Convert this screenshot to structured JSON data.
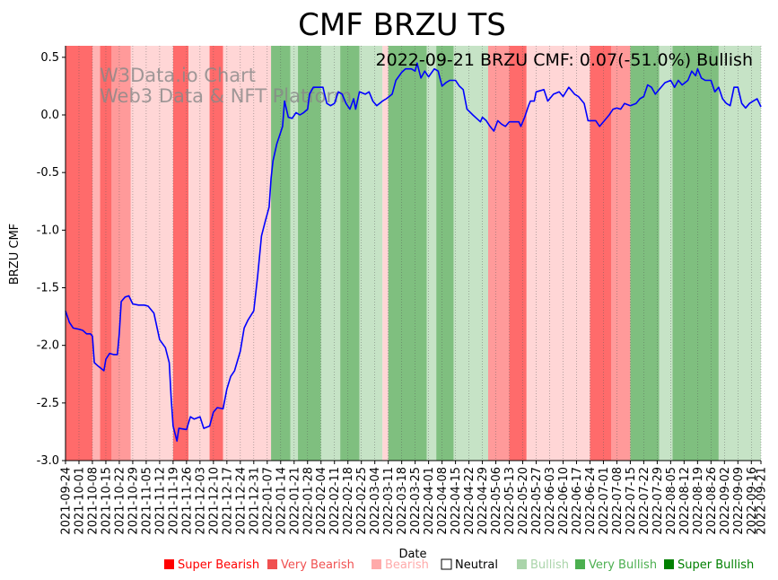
{
  "chart_data": {
    "type": "line",
    "title": "CMF BRZU TS",
    "annotation": "2022-09-21 BRZU CMF: 0.07(-51.0%) Bullish",
    "watermark": [
      "W3Data.io Chart",
      "Web3 Data & NFT Platform"
    ],
    "xlabel": "Date",
    "ylabel": "BRZU CMF",
    "ylim": [
      -3.0,
      0.6
    ],
    "yticks": [
      "-3.0",
      "-2.5",
      "-2.0",
      "-1.5",
      "-1.0",
      "-0.5",
      "0.0",
      "0.5"
    ],
    "ytick_values": [
      -3.0,
      -2.5,
      -2.0,
      -1.5,
      -1.0,
      -0.5,
      0.0,
      0.5
    ],
    "x_start": "2021-09-24",
    "x_end": "2022-09-21",
    "xticks": [
      "2021-09-24",
      "2021-10-01",
      "2021-10-08",
      "2021-10-15",
      "2021-10-22",
      "2021-10-29",
      "2021-11-05",
      "2021-11-12",
      "2021-11-19",
      "2021-11-26",
      "2021-12-03",
      "2021-12-10",
      "2021-12-17",
      "2021-12-24",
      "2021-12-31",
      "2022-01-07",
      "2022-01-14",
      "2022-01-21",
      "2022-01-28",
      "2022-02-04",
      "2022-02-11",
      "2022-02-18",
      "2022-02-25",
      "2022-03-04",
      "2022-03-11",
      "2022-03-18",
      "2022-03-25",
      "2022-04-01",
      "2022-04-08",
      "2022-04-15",
      "2022-04-22",
      "2022-04-29",
      "2022-05-06",
      "2022-05-13",
      "2022-05-20",
      "2022-05-27",
      "2022-06-03",
      "2022-06-10",
      "2022-06-17",
      "2022-06-24",
      "2022-07-01",
      "2022-07-08",
      "2022-07-15",
      "2022-07-22",
      "2022-07-29",
      "2022-08-05",
      "2022-08-12",
      "2022-08-19",
      "2022-08-26",
      "2022-09-02",
      "2022-09-09",
      "2022-09-16",
      "2022-09-21"
    ],
    "series": [
      {
        "color": "#0000ff",
        "points": [
          [
            "2021-09-24",
            -1.7
          ],
          [
            "2021-09-26",
            -1.8
          ],
          [
            "2021-09-28",
            -1.85
          ],
          [
            "2021-10-01",
            -1.86
          ],
          [
            "2021-10-03",
            -1.87
          ],
          [
            "2021-10-05",
            -1.9
          ],
          [
            "2021-10-07",
            -1.9
          ],
          [
            "2021-10-08",
            -1.92
          ],
          [
            "2021-10-09",
            -2.15
          ],
          [
            "2021-10-11",
            -2.18
          ],
          [
            "2021-10-14",
            -2.22
          ],
          [
            "2021-10-15",
            -2.12
          ],
          [
            "2021-10-17",
            -2.07
          ],
          [
            "2021-10-19",
            -2.08
          ],
          [
            "2021-10-21",
            -2.08
          ],
          [
            "2021-10-22",
            -1.9
          ],
          [
            "2021-10-23",
            -1.62
          ],
          [
            "2021-10-25",
            -1.58
          ],
          [
            "2021-10-27",
            -1.57
          ],
          [
            "2021-10-29",
            -1.64
          ],
          [
            "2021-11-01",
            -1.65
          ],
          [
            "2021-11-04",
            -1.65
          ],
          [
            "2021-11-06",
            -1.66
          ],
          [
            "2021-11-09",
            -1.72
          ],
          [
            "2021-11-12",
            -1.95
          ],
          [
            "2021-11-15",
            -2.02
          ],
          [
            "2021-11-17",
            -2.15
          ],
          [
            "2021-11-18",
            -2.45
          ],
          [
            "2021-11-19",
            -2.7
          ],
          [
            "2021-11-21",
            -2.83
          ],
          [
            "2021-11-22",
            -2.72
          ],
          [
            "2021-11-26",
            -2.73
          ],
          [
            "2021-11-28",
            -2.62
          ],
          [
            "2021-11-30",
            -2.64
          ],
          [
            "2021-12-03",
            -2.62
          ],
          [
            "2021-12-05",
            -2.72
          ],
          [
            "2021-12-08",
            -2.7
          ],
          [
            "2021-12-10",
            -2.58
          ],
          [
            "2021-12-12",
            -2.54
          ],
          [
            "2021-12-15",
            -2.55
          ],
          [
            "2021-12-17",
            -2.38
          ],
          [
            "2021-12-19",
            -2.27
          ],
          [
            "2021-12-21",
            -2.22
          ],
          [
            "2021-12-24",
            -2.05
          ],
          [
            "2021-12-26",
            -1.85
          ],
          [
            "2021-12-28",
            -1.78
          ],
          [
            "2021-12-31",
            -1.7
          ],
          [
            "2022-01-02",
            -1.4
          ],
          [
            "2022-01-04",
            -1.05
          ],
          [
            "2022-01-06",
            -0.92
          ],
          [
            "2022-01-08",
            -0.8
          ],
          [
            "2022-01-09",
            -0.55
          ],
          [
            "2022-01-10",
            -0.4
          ],
          [
            "2022-01-12",
            -0.25
          ],
          [
            "2022-01-14",
            -0.15
          ],
          [
            "2022-01-15",
            -0.1
          ],
          [
            "2022-01-16",
            0.12
          ],
          [
            "2022-01-18",
            -0.02
          ],
          [
            "2022-01-20",
            -0.03
          ],
          [
            "2022-01-22",
            0.02
          ],
          [
            "2022-01-24",
            0.0
          ],
          [
            "2022-01-26",
            0.02
          ],
          [
            "2022-01-28",
            0.05
          ],
          [
            "2022-01-29",
            0.18
          ],
          [
            "2022-01-31",
            0.24
          ],
          [
            "2022-02-02",
            0.24
          ],
          [
            "2022-02-05",
            0.24
          ],
          [
            "2022-02-07",
            0.1
          ],
          [
            "2022-02-09",
            0.08
          ],
          [
            "2022-02-11",
            0.1
          ],
          [
            "2022-02-13",
            0.2
          ],
          [
            "2022-02-15",
            0.18
          ],
          [
            "2022-02-17",
            0.1
          ],
          [
            "2022-02-19",
            0.05
          ],
          [
            "2022-02-21",
            0.14
          ],
          [
            "2022-02-22",
            0.05
          ],
          [
            "2022-02-24",
            0.2
          ],
          [
            "2022-02-27",
            0.18
          ],
          [
            "2022-03-01",
            0.2
          ],
          [
            "2022-03-03",
            0.12
          ],
          [
            "2022-03-05",
            0.08
          ],
          [
            "2022-03-08",
            0.12
          ],
          [
            "2022-03-10",
            0.14
          ],
          [
            "2022-03-13",
            0.18
          ],
          [
            "2022-03-15",
            0.3
          ],
          [
            "2022-03-18",
            0.37
          ],
          [
            "2022-03-20",
            0.4
          ],
          [
            "2022-03-23",
            0.4
          ],
          [
            "2022-03-25",
            0.38
          ],
          [
            "2022-03-26",
            0.45
          ],
          [
            "2022-03-28",
            0.32
          ],
          [
            "2022-03-30",
            0.38
          ],
          [
            "2022-04-01",
            0.33
          ],
          [
            "2022-04-04",
            0.4
          ],
          [
            "2022-04-06",
            0.38
          ],
          [
            "2022-04-08",
            0.25
          ],
          [
            "2022-04-10",
            0.28
          ],
          [
            "2022-04-12",
            0.3
          ],
          [
            "2022-04-15",
            0.3
          ],
          [
            "2022-04-17",
            0.25
          ],
          [
            "2022-04-19",
            0.22
          ],
          [
            "2022-04-21",
            0.05
          ],
          [
            "2022-04-24",
            0.0
          ],
          [
            "2022-04-26",
            -0.03
          ],
          [
            "2022-04-28",
            -0.06
          ],
          [
            "2022-04-29",
            -0.02
          ],
          [
            "2022-05-01",
            -0.05
          ],
          [
            "2022-05-03",
            -0.1
          ],
          [
            "2022-05-05",
            -0.14
          ],
          [
            "2022-05-07",
            -0.05
          ],
          [
            "2022-05-09",
            -0.08
          ],
          [
            "2022-05-11",
            -0.1
          ],
          [
            "2022-05-13",
            -0.06
          ],
          [
            "2022-05-15",
            -0.06
          ],
          [
            "2022-05-18",
            -0.06
          ],
          [
            "2022-05-19",
            -0.1
          ],
          [
            "2022-05-21",
            -0.02
          ],
          [
            "2022-05-23",
            0.08
          ],
          [
            "2022-05-24",
            0.12
          ],
          [
            "2022-05-26",
            0.12
          ],
          [
            "2022-05-27",
            0.2
          ],
          [
            "2022-05-31",
            0.22
          ],
          [
            "2022-06-02",
            0.12
          ],
          [
            "2022-06-05",
            0.18
          ],
          [
            "2022-06-08",
            0.2
          ],
          [
            "2022-06-10",
            0.16
          ],
          [
            "2022-06-13",
            0.24
          ],
          [
            "2022-06-16",
            0.18
          ],
          [
            "2022-06-18",
            0.16
          ],
          [
            "2022-06-21",
            0.1
          ],
          [
            "2022-06-23",
            -0.05
          ],
          [
            "2022-06-27",
            -0.05
          ],
          [
            "2022-06-29",
            -0.1
          ],
          [
            "2022-07-02",
            -0.04
          ],
          [
            "2022-07-04",
            0.0
          ],
          [
            "2022-07-06",
            0.05
          ],
          [
            "2022-07-08",
            0.06
          ],
          [
            "2022-07-10",
            0.05
          ],
          [
            "2022-07-12",
            0.1
          ],
          [
            "2022-07-15",
            0.08
          ],
          [
            "2022-07-18",
            0.1
          ],
          [
            "2022-07-20",
            0.14
          ],
          [
            "2022-07-22",
            0.16
          ],
          [
            "2022-07-24",
            0.26
          ],
          [
            "2022-07-26",
            0.24
          ],
          [
            "2022-07-28",
            0.18
          ],
          [
            "2022-07-30",
            0.22
          ],
          [
            "2022-08-02",
            0.28
          ],
          [
            "2022-08-05",
            0.3
          ],
          [
            "2022-08-07",
            0.24
          ],
          [
            "2022-08-09",
            0.3
          ],
          [
            "2022-08-11",
            0.26
          ],
          [
            "2022-08-14",
            0.3
          ],
          [
            "2022-08-16",
            0.38
          ],
          [
            "2022-08-18",
            0.34
          ],
          [
            "2022-08-19",
            0.4
          ],
          [
            "2022-08-21",
            0.32
          ],
          [
            "2022-08-23",
            0.3
          ],
          [
            "2022-08-26",
            0.3
          ],
          [
            "2022-08-28",
            0.2
          ],
          [
            "2022-08-30",
            0.24
          ],
          [
            "2022-09-01",
            0.14
          ],
          [
            "2022-09-03",
            0.1
          ],
          [
            "2022-09-05",
            0.08
          ],
          [
            "2022-09-07",
            0.24
          ],
          [
            "2022-09-09",
            0.24
          ],
          [
            "2022-09-11",
            0.1
          ],
          [
            "2022-09-13",
            0.06
          ],
          [
            "2022-09-15",
            0.1
          ],
          [
            "2022-09-17",
            0.12
          ],
          [
            "2022-09-19",
            0.14
          ],
          [
            "2022-09-21",
            0.07
          ]
        ]
      }
    ],
    "regions": [
      [
        "2021-09-24",
        "2021-10-08",
        "Super Bearish"
      ],
      [
        "2021-10-08",
        "2021-10-12",
        "Bearish"
      ],
      [
        "2021-10-12",
        "2021-10-18",
        "Super Bearish"
      ],
      [
        "2021-10-18",
        "2021-10-28",
        "Very Bearish"
      ],
      [
        "2021-10-28",
        "2021-11-19",
        "Neutral"
      ],
      [
        "2021-11-19",
        "2021-11-27",
        "Super Bearish"
      ],
      [
        "2021-11-27",
        "2021-12-08",
        "Neutral"
      ],
      [
        "2021-12-08",
        "2021-12-15",
        "Super Bearish"
      ],
      [
        "2021-12-15",
        "2022-01-09",
        "Neutral"
      ],
      [
        "2022-01-09",
        "2022-01-19",
        "Very Bullish"
      ],
      [
        "2022-01-19",
        "2022-01-23",
        "Bullish"
      ],
      [
        "2022-01-23",
        "2022-02-04",
        "Very Bullish"
      ],
      [
        "2022-02-04",
        "2022-02-14",
        "Bullish"
      ],
      [
        "2022-02-14",
        "2022-02-24",
        "Very Bullish"
      ],
      [
        "2022-02-24",
        "2022-03-08",
        "Bullish"
      ],
      [
        "2022-03-08",
        "2022-03-11",
        "Neutral"
      ],
      [
        "2022-03-11",
        "2022-03-31",
        "Very Bullish"
      ],
      [
        "2022-03-31",
        "2022-04-05",
        "Bullish"
      ],
      [
        "2022-04-05",
        "2022-04-14",
        "Very Bullish"
      ],
      [
        "2022-04-14",
        "2022-05-02",
        "Bullish"
      ],
      [
        "2022-05-02",
        "2022-05-13",
        "Very Bearish"
      ],
      [
        "2022-05-13",
        "2022-05-22",
        "Super Bearish"
      ],
      [
        "2022-05-22",
        "2022-06-24",
        "Neutral"
      ],
      [
        "2022-06-24",
        "2022-07-05",
        "Super Bearish"
      ],
      [
        "2022-07-05",
        "2022-07-15",
        "Very Bearish"
      ],
      [
        "2022-07-15",
        "2022-07-30",
        "Very Bullish"
      ],
      [
        "2022-07-30",
        "2022-08-06",
        "Bullish"
      ],
      [
        "2022-08-06",
        "2022-08-30",
        "Very Bullish"
      ],
      [
        "2022-08-30",
        "2022-09-21",
        "Bullish"
      ]
    ],
    "region_colors": {
      "Super Bearish": "#ff6b6b",
      "Very Bearish": "#ff9a9a",
      "Bearish": "#ffb3b3",
      "Neutral": "#ffd6d6",
      "Bullish": "#c6e3c6",
      "Very Bullish": "#7fbf7f",
      "Super Bullish": "#4a9e4a"
    },
    "legend": [
      {
        "label": "Super Bearish",
        "color": "#ff0000",
        "text_color": "#ff0000"
      },
      {
        "label": "Very Bearish",
        "color": "#f05050",
        "text_color": "#f05050"
      },
      {
        "label": "Bearish",
        "color": "#ffaaaa",
        "text_color": "#ffaaaa"
      },
      {
        "label": "Neutral",
        "color": "#ffffff",
        "text_color": "#000000"
      },
      {
        "label": "Bullish",
        "color": "#aad4aa",
        "text_color": "#aad4aa"
      },
      {
        "label": "Very Bullish",
        "color": "#4caf50",
        "text_color": "#4caf50"
      },
      {
        "label": "Super Bullish",
        "color": "#008000",
        "text_color": "#008000"
      }
    ],
    "legend_placement": "bottom-right",
    "grid": "vertical dotted"
  }
}
